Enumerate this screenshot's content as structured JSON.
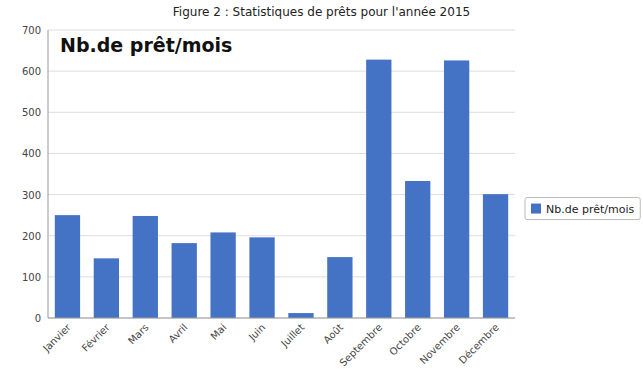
{
  "chart_data": {
    "type": "bar",
    "title": "Figure 2 : Statistiques de prêts pour l'année 2015",
    "annotations": [
      {
        "text": "Nb.de prêt/mois"
      }
    ],
    "categories": [
      "Janvier",
      "Février",
      "Mars",
      "Avril",
      "Mai",
      "Juin",
      "Juillet",
      "Août",
      "Septembre",
      "Octobre",
      "Novembre",
      "Décembre"
    ],
    "series": [
      {
        "name": "Nb.de prêt/mois",
        "color": "#4472C4",
        "values": [
          250,
          145,
          248,
          182,
          208,
          196,
          12,
          148,
          628,
          333,
          626,
          301
        ]
      }
    ],
    "ylim": [
      0,
      700
    ],
    "yticks": [
      0,
      100,
      200,
      300,
      400,
      500,
      600,
      700
    ],
    "grid": true,
    "legend": "right"
  }
}
